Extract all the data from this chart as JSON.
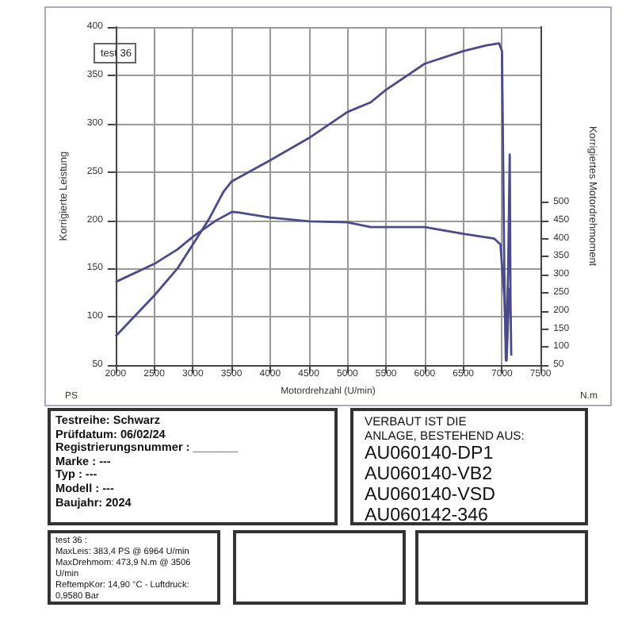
{
  "chart_data": {
    "type": "line",
    "xlabel": "Motordrehzahl (U/min)",
    "ylabel": "Korrigierte Leistung",
    "y2label": "Korrigiertes Motordrehmoment",
    "xlim": [
      2000,
      7500
    ],
    "xticks": [
      2000,
      2500,
      3000,
      3500,
      4000,
      4500,
      5000,
      5500,
      6000,
      6500,
      7000,
      7500
    ],
    "ylim": [
      50,
      400
    ],
    "yticks": [
      50,
      100,
      150,
      200,
      250,
      300,
      350,
      400
    ],
    "y2lim": [
      50,
      985
    ],
    "y2ticks": [
      50,
      100,
      150,
      200,
      250,
      300,
      350,
      400,
      450,
      500
    ],
    "grid": true,
    "marker": "none",
    "line_style": "solid",
    "series": [
      {
        "color": "#4b4a8c",
        "x": [
          2000,
          2500,
          2800,
          3000,
          3200,
          3400,
          3500,
          4000,
          4500,
          5000,
          5300,
          5500,
          6000,
          6500,
          6800,
          6964,
          7000,
          7030,
          7050,
          7080,
          7100,
          7110,
          7120
        ],
        "values": [
          80,
          122,
          150,
          175,
          200,
          230,
          240,
          262,
          285,
          312,
          322,
          335,
          362,
          375,
          381,
          383,
          375,
          150,
          55,
          150,
          268,
          120,
          60
        ]
      },
      {
        "color": "#4b4a8c",
        "axis": "y2",
        "x": [
          2000,
          2500,
          2800,
          3000,
          3300,
          3506,
          3600,
          4000,
          4500,
          5000,
          5300,
          6000,
          6500,
          6900,
          6980,
          7030,
          7060,
          7080,
          7100
        ],
        "values": [
          280,
          330,
          370,
          405,
          450,
          474,
          472,
          458,
          448,
          445,
          432,
          432,
          413,
          400,
          384,
          237,
          63,
          183,
          264
        ]
      }
    ],
    "annotations": [
      "test 36",
      "PS",
      "N.m",
      "Testreihe: Schwarz\nPrüfdatum: 06/02/24\nRegistrierungsnummer  : _______\nMarke  : ---\nTyp  : ---\nModell  : ---\nBaujahr: 2024",
      "VERBAUT IST DIE\nANLAGE, BESTEHEND AUS:",
      "AU060140-DP1\nAU060140-VB2\nAU060140-VSD\nAU060142-346",
      "test 36 :\nMaxLeis: 383,4 PS @ 6964 U/min\nMaxDrehmom: 473,9 N.m @ 3506 U/min\nReftempKor: 14,90 °C - Luftdruck: 0,9580 Bar"
    ]
  }
}
